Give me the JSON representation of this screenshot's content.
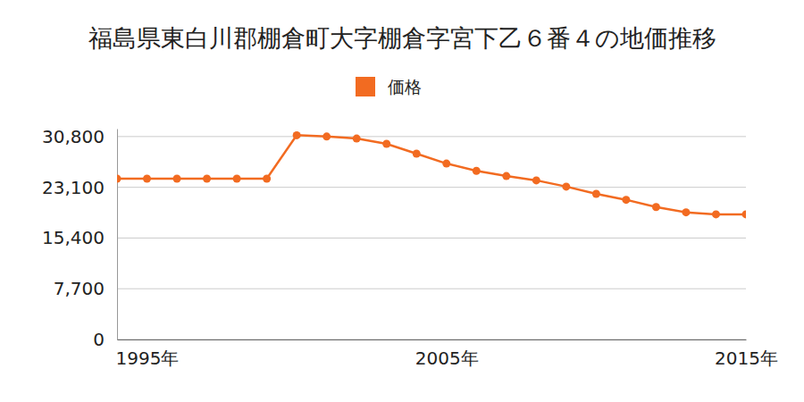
{
  "chart_data": {
    "type": "line",
    "title": "福島県東白川郡棚倉町大字棚倉字宮下乙６番４の地価推移",
    "x": [
      1994,
      1995,
      1996,
      1997,
      1998,
      1999,
      2000,
      2001,
      2002,
      2003,
      2004,
      2005,
      2006,
      2007,
      2008,
      2009,
      2010,
      2011,
      2012,
      2013,
      2014,
      2015
    ],
    "series": [
      {
        "name": "価格",
        "color": "#f26b21",
        "marker": "circle",
        "values": [
          24400,
          24400,
          24400,
          24400,
          24400,
          24400,
          31000,
          30800,
          30500,
          29700,
          28200,
          26700,
          25600,
          24800,
          24150,
          23200,
          22100,
          21200,
          20100,
          19300,
          19000,
          19000
        ]
      }
    ],
    "xlim": [
      1994,
      2015
    ],
    "xticks": [
      {
        "value": 1995,
        "label": "1995年"
      },
      {
        "value": 2005,
        "label": "2005年"
      },
      {
        "value": 2015,
        "label": "2015年"
      }
    ],
    "ylim": [
      0,
      32000
    ],
    "yticks": [
      0,
      {
        "value": 7700,
        "label": "7,700"
      },
      {
        "value": 15400,
        "label": "15,400"
      },
      {
        "value": 23100,
        "label": "23,100"
      },
      {
        "value": 30800,
        "label": "30,800"
      }
    ],
    "grid": true,
    "legend": "top"
  }
}
